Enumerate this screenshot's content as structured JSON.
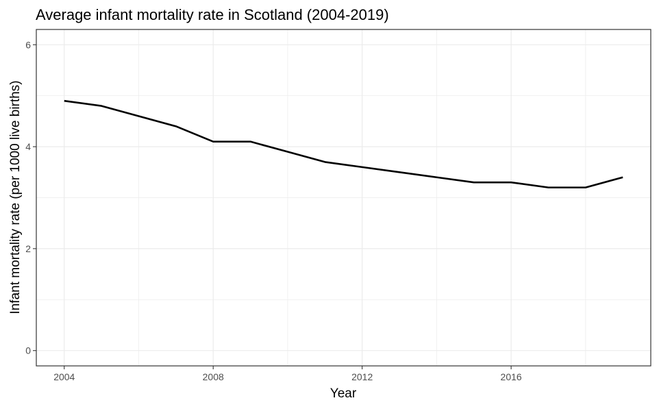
{
  "chart_data": {
    "type": "line",
    "title": "Average infant mortality rate in Scotland (2004-2019)",
    "xlabel": "Year",
    "ylabel": "Infant mortality rate (per 1000 live births)",
    "x": [
      2004,
      2005,
      2006,
      2007,
      2008,
      2009,
      2010,
      2011,
      2012,
      2013,
      2014,
      2015,
      2016,
      2017,
      2018,
      2019
    ],
    "series": [
      {
        "values": [
          4.9,
          4.8,
          4.6,
          4.4,
          4.1,
          4.1,
          3.9,
          3.7,
          3.6,
          3.5,
          3.4,
          3.3,
          3.3,
          3.2,
          3.2,
          3.4
        ]
      }
    ],
    "xlim": [
      2003.25,
      2019.75
    ],
    "ylim": [
      -0.3,
      6.3
    ],
    "x_ticks": [
      2004,
      2008,
      2012,
      2016
    ],
    "x_tick_labels": [
      "2004",
      "2008",
      "2012",
      "2016"
    ],
    "y_ticks": [
      0,
      2,
      4,
      6
    ],
    "y_tick_labels": [
      "0",
      "2",
      "4",
      "6"
    ],
    "x_minor_gridlines": [
      2006,
      2010,
      2014,
      2018
    ],
    "y_minor_gridlines": [
      1,
      3,
      5
    ],
    "grid": true,
    "legend": "none",
    "colors": {
      "line": "#000000",
      "grid": "#ebebeb",
      "panel_border": "#333333",
      "tick_text": "#4d4d4d",
      "background": "#ffffff"
    }
  }
}
